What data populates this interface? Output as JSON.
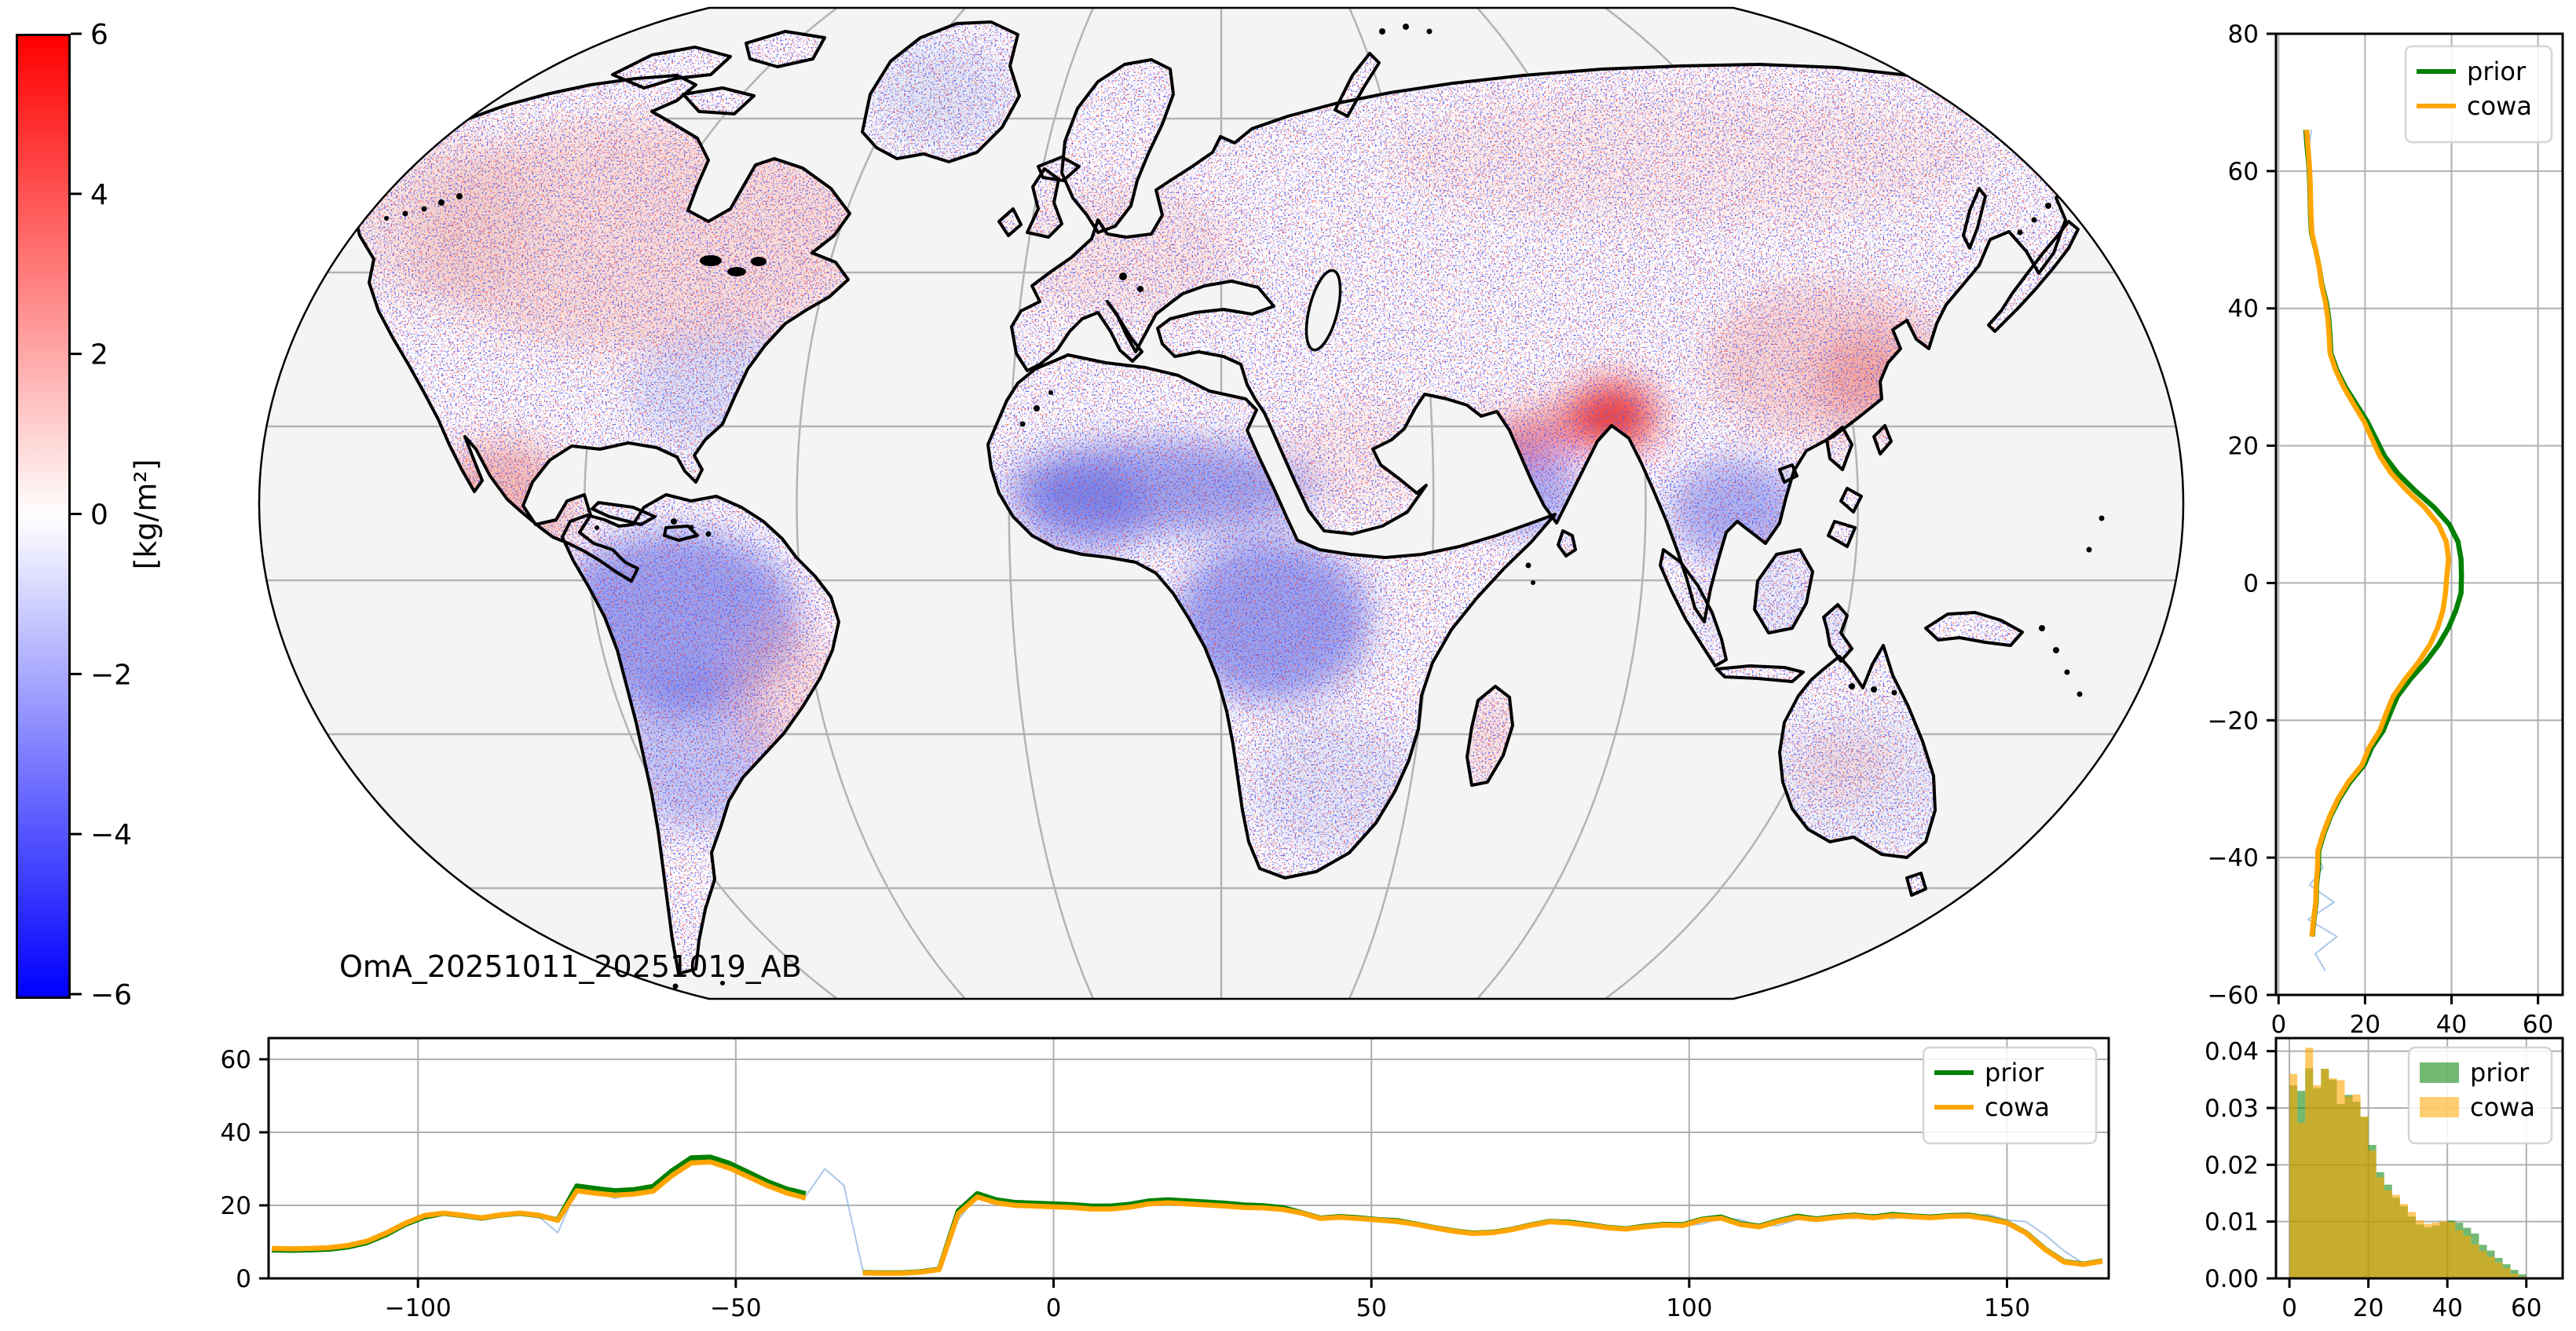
{
  "figure": {
    "background": "#ffffff"
  },
  "map": {
    "annotation": "OmA_20251011_20251019_AB",
    "ocean_color": "#f4f4f4",
    "land_color": "#ffffff",
    "coastline_color": "#000000",
    "graticule_color": "#b3b3b3",
    "colormap_negative": "#0000ff",
    "colormap_zero": "#ffffff",
    "colormap_positive": "#ff0000"
  },
  "colorbar": {
    "label": "[kg/m²]",
    "min": -6,
    "max": 6,
    "tick_values": [
      6,
      4,
      2,
      0,
      -2,
      -4,
      -6
    ],
    "tick_labels": [
      "6",
      "4",
      "2",
      "0",
      "−2",
      "−4",
      "−6"
    ]
  },
  "chart_data": [
    {
      "id": "zonal",
      "type": "line",
      "title": "",
      "xlabel": "",
      "ylabel": "",
      "orientation": "vertical-profile",
      "xlim": [
        -0.6,
        65.7
      ],
      "ylim": [
        -60,
        80
      ],
      "xticks": [
        0,
        20,
        40,
        60
      ],
      "xtick_labels": [
        "0",
        "20",
        "40",
        "60"
      ],
      "yticks": [
        80,
        60,
        40,
        20,
        0,
        -20,
        -40,
        -60
      ],
      "ytick_labels": [
        "80",
        "60",
        "40",
        "20",
        "0",
        "−20",
        "−40",
        "−60"
      ],
      "grid": true,
      "legend_position": "upper right",
      "legend": [
        {
          "label": "prior",
          "color": "#008000",
          "swatch": "line"
        },
        {
          "label": "cowa",
          "color": "#ffa500",
          "swatch": "line"
        }
      ],
      "lat_start": 66,
      "lat_step": -2.5,
      "count": 50,
      "series": [
        {
          "name": "raw",
          "color": "#90b4e0",
          "width": 2,
          "opacity": 0.75,
          "values": [
            7.6,
            7.0,
            7.3,
            7.1,
            7.6,
            7.3,
            7.9,
            8.8,
            9.2,
            10.1,
            10.6,
            11.6,
            11.5,
            12.1,
            13.0,
            15.3,
            17.2,
            20.0,
            21.4,
            23.6,
            25.8,
            29.9,
            33.5,
            37.3,
            38.5,
            39.6,
            38.6,
            38.9,
            37.7,
            37.1,
            34.7,
            32.7,
            29.0,
            26.8,
            24.6,
            23.7,
            20.6,
            19.6,
            15.8,
            14.0,
            11.5,
            10.6,
            8.8,
            10.2,
            7.2,
            12.8,
            6.8,
            13.5,
            8.5,
            10.8
          ]
        },
        {
          "name": "prior",
          "color": "#008000",
          "width": 6.5,
          "opacity": 1,
          "values": [
            6.3,
            6.6,
            7.0,
            7.2,
            7.3,
            7.4,
            7.6,
            8.6,
            9.4,
            10.0,
            11.0,
            11.6,
            11.9,
            12.1,
            13.5,
            15.5,
            18.0,
            20.5,
            22.5,
            24.5,
            27.5,
            31.5,
            36.0,
            39.5,
            41.5,
            42.2,
            42.3,
            42.2,
            41.0,
            39.3,
            37.0,
            34.0,
            30.5,
            27.5,
            25.8,
            24.2,
            21.5,
            19.8,
            16.5,
            14.0,
            12.0,
            10.5,
            9.3,
            9.2,
            8.8,
            8.7,
            8.2,
            7.8,
            null,
            null
          ]
        },
        {
          "name": "cowa",
          "color": "#ffa500",
          "width": 6.5,
          "opacity": 1,
          "values": [
            6.5,
            6.8,
            7.1,
            7.3,
            7.4,
            7.5,
            7.7,
            8.6,
            9.4,
            9.9,
            10.8,
            11.4,
            11.7,
            11.9,
            13.2,
            15.1,
            17.4,
            19.8,
            21.6,
            23.4,
            26.0,
            29.6,
            33.8,
            37.0,
            38.8,
            39.3,
            38.9,
            38.6,
            38.0,
            36.8,
            35.0,
            32.4,
            29.3,
            26.5,
            24.9,
            23.4,
            20.9,
            19.3,
            16.1,
            13.7,
            11.8,
            10.3,
            9.1,
            9.0,
            8.7,
            8.6,
            8.1,
            7.7,
            null,
            null
          ]
        }
      ]
    },
    {
      "id": "meridional",
      "type": "line",
      "title": "",
      "xlabel": "",
      "ylabel": "",
      "xlim": [
        -123.5,
        166
      ],
      "ylim": [
        0,
        65.8
      ],
      "xticks": [
        -100,
        -50,
        0,
        50,
        100,
        150
      ],
      "xtick_labels": [
        "−100",
        "−50",
        "0",
        "50",
        "100",
        "150"
      ],
      "yticks": [
        0,
        20,
        40,
        60
      ],
      "ytick_labels": [
        "0",
        "20",
        "40",
        "60"
      ],
      "grid": true,
      "legend_position": "upper right",
      "legend": [
        {
          "label": "prior",
          "color": "#008000",
          "swatch": "line"
        },
        {
          "label": "cowa",
          "color": "#ffa500",
          "swatch": "line"
        }
      ],
      "lon_start": -123,
      "lon_step": 3,
      "count": 97,
      "series": [
        {
          "name": "raw",
          "color": "#90b4e0",
          "width": 2,
          "opacity": 0.75,
          "values": [
            8.0,
            8.3,
            7.9,
            8.6,
            9.2,
            10.0,
            12.0,
            15.5,
            17.6,
            18.3,
            16.8,
            16.2,
            17.8,
            18.2,
            16.9,
            12.5,
            24.5,
            23.8,
            21.9,
            23.5,
            24.2,
            28.0,
            32.0,
            31.5,
            30.5,
            28.2,
            25.0,
            23.8,
            22.5,
            30.0,
            25.5,
            2.2,
            1.2,
            1.6,
            1.5,
            2.2,
            16.0,
            22.8,
            21.0,
            19.6,
            20.1,
            19.4,
            19.7,
            18.6,
            19.3,
            19.8,
            20.6,
            20.3,
            20.8,
            19.9,
            20.0,
            19.6,
            19.0,
            19.2,
            17.6,
            16.2,
            17.1,
            16.2,
            15.7,
            15.9,
            14.4,
            13.6,
            12.7,
            12.1,
            12.8,
            13.1,
            14.8,
            15.9,
            15.0,
            14.9,
            13.6,
            13.8,
            13.9,
            15.0,
            14.4,
            14.9,
            16.4,
            16.1,
            14.4,
            14.5,
            16.1,
            16.4,
            16.6,
            16.4,
            17.5,
            16.3,
            17.5,
            16.4,
            17.3,
            16.7,
            17.5,
            16.0,
            15.5,
            11.9,
            7.5,
            4.1,
            5.3
          ]
        },
        {
          "name": "prior",
          "color": "#008000",
          "width": 6.5,
          "opacity": 1,
          "values": [
            7.8,
            7.7,
            7.8,
            8.0,
            8.6,
            9.8,
            12.0,
            14.8,
            16.8,
            17.8,
            17.2,
            16.5,
            17.3,
            17.8,
            17.2,
            16.0,
            25.3,
            24.6,
            24.0,
            24.3,
            25.2,
            29.5,
            33.0,
            33.2,
            31.5,
            29.0,
            26.5,
            24.5,
            23.2,
            null,
            null,
            1.6,
            1.5,
            1.5,
            1.8,
            2.5,
            18.5,
            23.2,
            21.5,
            20.8,
            20.6,
            20.4,
            20.2,
            19.8,
            19.8,
            20.3,
            21.2,
            21.5,
            21.2,
            20.9,
            20.6,
            20.1,
            19.9,
            19.4,
            18.0,
            16.5,
            16.9,
            16.6,
            16.1,
            15.8,
            14.9,
            13.9,
            13.0,
            12.4,
            12.6,
            13.4,
            14.6,
            15.6,
            15.4,
            14.8,
            14.0,
            13.6,
            14.3,
            14.8,
            14.7,
            16.2,
            16.8,
            15.0,
            14.3,
            15.8,
            17.0,
            16.3,
            16.9,
            17.3,
            16.8,
            17.5,
            17.1,
            16.8,
            17.2,
            17.3,
            16.5,
            15.3,
            12.5,
            8.0,
            4.6,
            3.9,
            4.8
          ]
        },
        {
          "name": "cowa",
          "color": "#ffa500",
          "width": 6.5,
          "opacity": 1,
          "values": [
            8.2,
            8.1,
            8.2,
            8.4,
            9.0,
            10.2,
            12.4,
            15.1,
            17.2,
            17.9,
            17.3,
            16.6,
            17.4,
            17.9,
            17.3,
            15.9,
            24.0,
            23.3,
            22.8,
            23.1,
            23.9,
            28.2,
            31.6,
            31.9,
            30.2,
            27.8,
            25.4,
            23.4,
            22.0,
            null,
            null,
            1.5,
            1.4,
            1.4,
            1.7,
            2.4,
            17.7,
            22.3,
            20.7,
            20.0,
            19.8,
            19.6,
            19.4,
            19.0,
            19.0,
            19.5,
            20.4,
            20.7,
            20.4,
            20.1,
            19.8,
            19.4,
            19.3,
            18.9,
            17.9,
            16.4,
            16.7,
            16.4,
            16.0,
            15.6,
            14.8,
            13.8,
            12.9,
            12.3,
            12.5,
            13.3,
            14.5,
            15.5,
            15.2,
            14.6,
            13.9,
            13.5,
            14.1,
            14.6,
            14.5,
            16.0,
            16.5,
            14.8,
            14.1,
            15.6,
            16.7,
            16.1,
            16.7,
            17.1,
            16.6,
            17.2,
            16.9,
            16.6,
            17.0,
            17.1,
            16.3,
            15.2,
            12.4,
            7.9,
            4.5,
            3.8,
            4.7
          ]
        }
      ]
    },
    {
      "id": "histogram",
      "type": "bar",
      "title": "",
      "xlabel": "",
      "ylabel": "",
      "bin_start": 0,
      "bin_width": 2,
      "xlim": [
        -3.4,
        69.2
      ],
      "ylim": [
        0,
        0.0423
      ],
      "xticks": [
        0,
        20,
        40,
        60
      ],
      "xtick_labels": [
        "0",
        "20",
        "40",
        "60"
      ],
      "yticks": [
        0,
        0.01,
        0.02,
        0.03,
        0.04
      ],
      "ytick_labels": [
        "0.00",
        "0.01",
        "0.02",
        "0.03",
        "0.04"
      ],
      "grid": true,
      "legend_position": "upper right",
      "legend": [
        {
          "label": "prior",
          "color": "#008000",
          "swatch": "patch"
        },
        {
          "label": "cowa",
          "color": "#ffa500",
          "swatch": "patch"
        }
      ],
      "series": [
        {
          "name": "prior",
          "color": "#008000",
          "opacity": 0.55,
          "values": [
            0.034,
            0.033,
            0.037,
            0.0335,
            0.0369,
            0.035,
            0.0307,
            0.0323,
            0.0311,
            0.0284,
            0.0235,
            0.0187,
            0.0165,
            0.0142,
            0.0127,
            0.0109,
            0.0095,
            0.009,
            0.0093,
            0.0099,
            0.0102,
            0.0098,
            0.0089,
            0.0079,
            0.0059,
            0.0049,
            0.0036,
            0.0025,
            0.0015,
            0.0007
          ]
        },
        {
          "name": "cowa",
          "color": "#ffa500",
          "opacity": 0.6,
          "values": [
            0.036,
            0.0274,
            0.0406,
            0.034,
            0.0369,
            0.0352,
            0.0349,
            0.032,
            0.0324,
            0.0285,
            0.0225,
            0.0178,
            0.0155,
            0.0147,
            0.0131,
            0.0117,
            0.0102,
            0.0096,
            0.0098,
            0.0101,
            0.0099,
            0.0085,
            0.0075,
            0.006,
            0.0048,
            0.0038,
            0.0028,
            0.0018,
            0.0008,
            0.0003
          ]
        }
      ]
    }
  ]
}
